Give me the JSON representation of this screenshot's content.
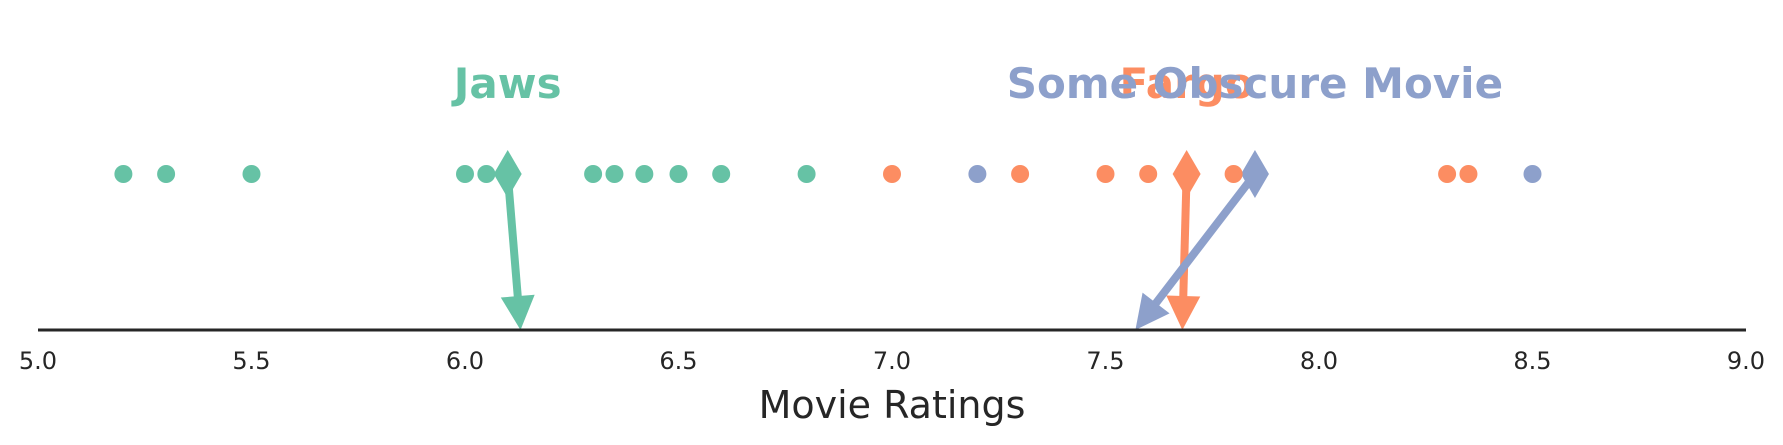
{
  "chart_data": {
    "type": "scatter",
    "title": "",
    "xlabel": "Movie Ratings",
    "ylabel": "",
    "xlim": [
      5.0,
      9.0
    ],
    "x_ticks": [
      "5.0",
      "5.5",
      "6.0",
      "6.5",
      "7.0",
      "7.5",
      "8.0",
      "8.5",
      "9.0"
    ],
    "grid": false,
    "series": [
      {
        "name": "Jaws",
        "color": "#66c2a5",
        "values": [
          5.2,
          5.3,
          5.5,
          6.0,
          6.05,
          6.3,
          6.35,
          6.42,
          6.5,
          6.6,
          6.8
        ],
        "mean": 6.1,
        "arrow_end": 6.13
      },
      {
        "name": "Fargo",
        "color": "#fc8d62",
        "values": [
          7.0,
          7.3,
          7.5,
          7.6,
          7.8,
          8.3,
          8.35
        ],
        "mean": 7.69,
        "arrow_end": 7.68
      },
      {
        "name": "Some Obscure Movie",
        "color": "#8da0cb",
        "values": [
          7.2,
          8.5
        ],
        "mean": 7.85,
        "arrow_end": 7.57
      }
    ]
  }
}
